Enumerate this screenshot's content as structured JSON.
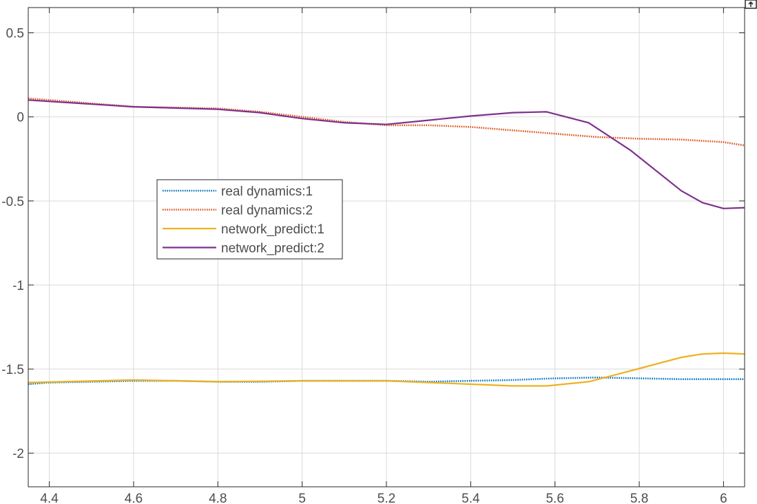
{
  "chart_data": {
    "type": "line",
    "title": "",
    "xlabel": "",
    "ylabel": "",
    "xlim": [
      4.35,
      6.05
    ],
    "ylim": [
      -2.2,
      0.65
    ],
    "grid": true,
    "legend_position": "upper-left-center",
    "x_ticks": [
      4.4,
      4.6,
      4.8,
      5.0,
      5.2,
      5.4,
      5.6,
      5.8,
      6.0
    ],
    "x_tick_labels": [
      "4.4",
      "4.6",
      "4.8",
      "5",
      "5.2",
      "5.4",
      "5.6",
      "5.8",
      "6"
    ],
    "y_ticks": [
      0.5,
      0,
      -0.5,
      -1,
      -1.5,
      -2
    ],
    "y_tick_labels": [
      "0.5",
      "0",
      "-0.5",
      "-1",
      "-1.5",
      "-2"
    ],
    "series": [
      {
        "name": "real dynamics:1",
        "color": "#0072BD",
        "style": "dotted",
        "x": [
          4.35,
          4.4,
          4.5,
          4.6,
          4.7,
          4.8,
          4.9,
          5.0,
          5.1,
          5.2,
          5.3,
          5.4,
          5.5,
          5.6,
          5.7,
          5.8,
          5.9,
          6.0,
          6.05
        ],
        "y": [
          -1.59,
          -1.58,
          -1.575,
          -1.57,
          -1.57,
          -1.575,
          -1.575,
          -1.57,
          -1.57,
          -1.57,
          -1.575,
          -1.57,
          -1.565,
          -1.555,
          -1.55,
          -1.555,
          -1.56,
          -1.56,
          -1.56
        ]
      },
      {
        "name": "real dynamics:2",
        "color": "#D95319",
        "style": "dotted",
        "x": [
          4.35,
          4.4,
          4.5,
          4.6,
          4.7,
          4.8,
          4.9,
          5.0,
          5.1,
          5.2,
          5.3,
          5.4,
          5.5,
          5.6,
          5.7,
          5.8,
          5.9,
          6.0,
          6.05
        ],
        "y": [
          0.11,
          0.1,
          0.08,
          0.06,
          0.055,
          0.05,
          0.03,
          0.0,
          -0.03,
          -0.05,
          -0.05,
          -0.06,
          -0.08,
          -0.1,
          -0.12,
          -0.13,
          -0.135,
          -0.15,
          -0.17
        ]
      },
      {
        "name": "network_predict:1",
        "color": "#EDB120",
        "style": "solid",
        "x": [
          4.35,
          4.6,
          4.8,
          5.0,
          5.2,
          5.4,
          5.5,
          5.58,
          5.68,
          5.78,
          5.9,
          5.95,
          6.0,
          6.05
        ],
        "y": [
          -1.58,
          -1.565,
          -1.575,
          -1.57,
          -1.57,
          -1.59,
          -1.6,
          -1.6,
          -1.575,
          -1.51,
          -1.43,
          -1.41,
          -1.405,
          -1.41
        ]
      },
      {
        "name": "network_predict:2",
        "color": "#7E2F8E",
        "style": "solid",
        "x": [
          4.35,
          4.6,
          4.8,
          4.9,
          5.0,
          5.1,
          5.2,
          5.3,
          5.4,
          5.5,
          5.58,
          5.68,
          5.78,
          5.9,
          5.95,
          6.0,
          6.05
        ],
        "y": [
          0.1,
          0.06,
          0.045,
          0.025,
          -0.01,
          -0.035,
          -0.045,
          -0.02,
          0.005,
          0.025,
          0.03,
          -0.035,
          -0.2,
          -0.44,
          -0.51,
          -0.545,
          -0.54
        ]
      }
    ]
  },
  "colors": {
    "grid": "#d9d9d9",
    "axes": "#262626",
    "tick_text": "#4d4d4d",
    "legend_border": "#262626"
  },
  "toolbar": {
    "icon": "export-icon"
  }
}
